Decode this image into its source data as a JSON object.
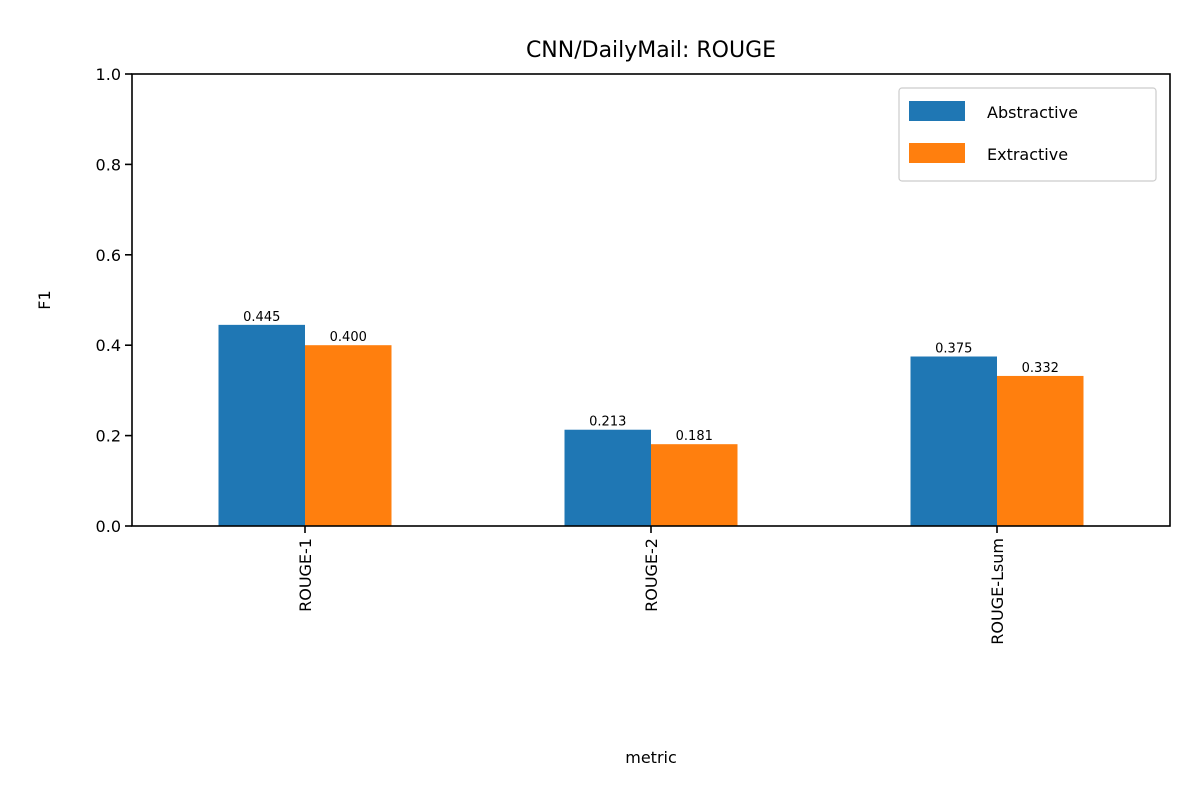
{
  "chart_data": {
    "type": "bar",
    "title": "CNN/DailyMail: ROUGE",
    "xlabel": "metric",
    "ylabel": "F1",
    "categories": [
      "ROUGE-1",
      "ROUGE-2",
      "ROUGE-Lsum"
    ],
    "series": [
      {
        "name": "Abstractive",
        "color": "#1f77b4",
        "values": [
          0.445,
          0.213,
          0.375
        ],
        "labels": [
          "0.445",
          "0.213",
          "0.375"
        ]
      },
      {
        "name": "Extractive",
        "color": "#ff7f0e",
        "values": [
          0.4,
          0.181,
          0.332
        ],
        "labels": [
          "0.400",
          "0.181",
          "0.332"
        ]
      }
    ],
    "ylim": [
      0,
      1.0
    ],
    "yticks": [
      0.0,
      0.2,
      0.4,
      0.6,
      0.8,
      1.0
    ],
    "ytick_labels": [
      "0.0",
      "0.2",
      "0.4",
      "0.6",
      "0.8",
      "1.0"
    ],
    "grid": false,
    "legend_position": "top-right",
    "x_tick_rotation": "vertical"
  }
}
